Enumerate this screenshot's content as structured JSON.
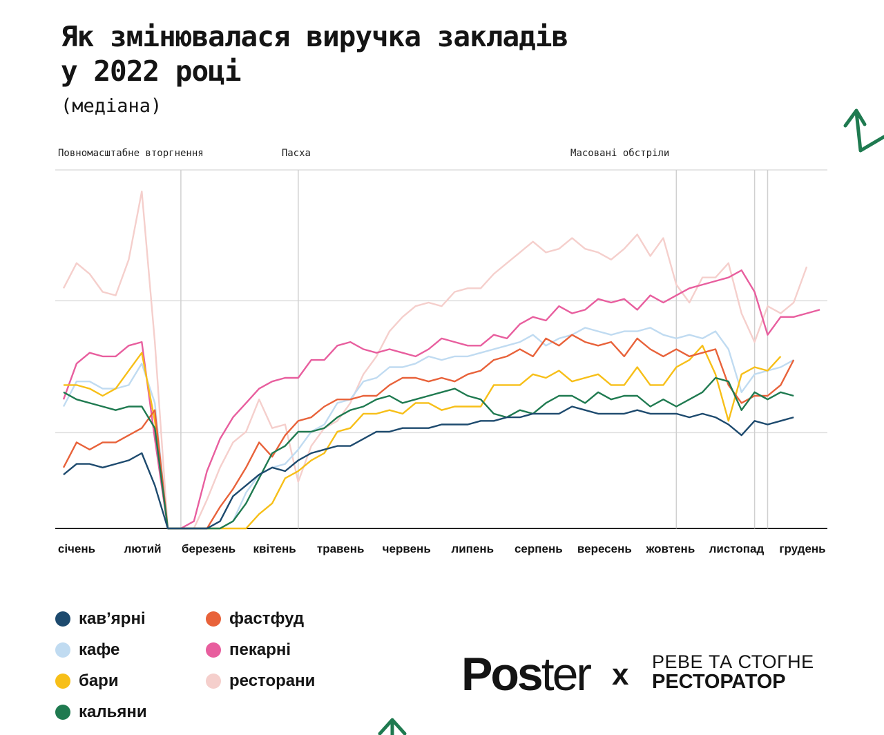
{
  "title": "Як змінювалася виручка закладів у 2022 році",
  "subtitle": "(медіана)",
  "chart_data": {
    "type": "line",
    "title": "Як змінювалася виручка закладів у 2022 році",
    "subtitle": "(медіана)",
    "xlabel": "",
    "ylabel": "",
    "ylim": [
      0,
      100
    ],
    "grid": true,
    "legend_position": "bottom-left",
    "months": [
      "січень",
      "лютий",
      "березень",
      "квітень",
      "травень",
      "червень",
      "липень",
      "серпень",
      "вересень",
      "жовтень",
      "листопад",
      "грудень"
    ],
    "events": [
      {
        "label": "Повномасштабне вторгнення",
        "week": 9
      },
      {
        "label": "Пасха",
        "week": 18
      },
      {
        "label": "Масовані обстріли",
        "week": 47
      },
      {
        "label": "",
        "week": 53
      },
      {
        "label": "",
        "week": 54
      }
    ],
    "series": [
      {
        "name": "ресторани",
        "color": "#f5cfcc",
        "values": [
          67,
          74,
          71,
          66,
          65,
          75,
          94,
          52,
          0,
          0,
          0,
          8,
          17,
          24,
          27,
          36,
          28,
          29,
          13,
          23,
          28,
          30,
          35,
          43,
          48,
          55,
          59,
          62,
          63,
          62,
          66,
          67,
          67,
          71,
          74,
          77,
          80,
          77,
          78,
          81,
          78,
          77,
          75,
          78,
          82,
          76,
          81,
          68,
          63,
          70,
          70,
          74,
          60,
          52,
          62,
          60,
          63,
          73
        ]
      },
      {
        "name": "пекарні",
        "color": "#e85e9e",
        "values": [
          36,
          46,
          49,
          48,
          48,
          51,
          52,
          25,
          0,
          0,
          2,
          16,
          25,
          31,
          35,
          39,
          41,
          42,
          42,
          47,
          47,
          51,
          52,
          50,
          49,
          50,
          49,
          48,
          50,
          53,
          52,
          51,
          51,
          54,
          53,
          57,
          59,
          58,
          62,
          60,
          61,
          64,
          63,
          64,
          61,
          65,
          63,
          65,
          67,
          68,
          69,
          70,
          72,
          66,
          54,
          59,
          59,
          60,
          61
        ]
      },
      {
        "name": "кафе",
        "color": "#c0dbf1",
        "values": [
          34,
          41,
          41,
          39,
          39,
          40,
          46,
          35,
          0,
          0,
          0,
          0,
          0,
          2,
          10,
          15,
          17,
          18,
          22,
          27,
          29,
          35,
          36,
          41,
          42,
          45,
          45,
          46,
          48,
          47,
          48,
          48,
          49,
          50,
          51,
          52,
          54,
          51,
          53,
          54,
          56,
          55,
          54,
          55,
          55,
          56,
          54,
          53,
          54,
          53,
          55,
          50,
          38,
          43,
          44,
          45,
          47
        ]
      },
      {
        "name": "бари",
        "color": "#f7bf18",
        "values": [
          40,
          40,
          39,
          37,
          39,
          44,
          49,
          30,
          0,
          0,
          0,
          0,
          0,
          0,
          0,
          4,
          7,
          14,
          16,
          19,
          21,
          27,
          28,
          32,
          32,
          33,
          32,
          35,
          35,
          33,
          34,
          34,
          34,
          40,
          40,
          40,
          43,
          42,
          44,
          41,
          42,
          43,
          40,
          40,
          45,
          40,
          40,
          45,
          47,
          51,
          43,
          30,
          43,
          45,
          44,
          48
        ]
      },
      {
        "name": "фастфуд",
        "color": "#e8623a",
        "values": [
          17,
          24,
          22,
          24,
          24,
          26,
          28,
          33,
          0,
          0,
          0,
          0,
          6,
          11,
          17,
          24,
          20,
          26,
          30,
          31,
          34,
          36,
          36,
          37,
          37,
          40,
          42,
          42,
          41,
          42,
          41,
          43,
          44,
          47,
          48,
          50,
          48,
          53,
          51,
          54,
          52,
          51,
          52,
          48,
          53,
          50,
          48,
          50,
          48,
          49,
          50,
          40,
          35,
          37,
          37,
          40,
          47
        ]
      },
      {
        "name": "кальяни",
        "color": "#1f7a50",
        "values": [
          38,
          36,
          35,
          34,
          33,
          34,
          34,
          28,
          0,
          0,
          0,
          0,
          0,
          2,
          7,
          14,
          21,
          23,
          27,
          27,
          28,
          31,
          33,
          34,
          36,
          37,
          35,
          36,
          37,
          38,
          39,
          37,
          36,
          32,
          31,
          33,
          32,
          35,
          37,
          37,
          35,
          38,
          36,
          37,
          37,
          34,
          36,
          34,
          36,
          38,
          42,
          41,
          33,
          38,
          36,
          38,
          37
        ]
      },
      {
        "name": "кав’ярні",
        "color": "#1d4a6e",
        "values": [
          15,
          18,
          18,
          17,
          18,
          19,
          21,
          12,
          0,
          0,
          0,
          0,
          2,
          9,
          12,
          15,
          17,
          16,
          19,
          21,
          22,
          23,
          23,
          25,
          27,
          27,
          28,
          28,
          28,
          29,
          29,
          29,
          30,
          30,
          31,
          31,
          32,
          32,
          32,
          34,
          33,
          32,
          32,
          32,
          33,
          32,
          32,
          32,
          31,
          32,
          31,
          29,
          26,
          30,
          29,
          30,
          31
        ]
      }
    ]
  },
  "legend": [
    {
      "name": "кав’ярні",
      "color": "#1d4a6e"
    },
    {
      "name": "кафе",
      "color": "#c0dbf1"
    },
    {
      "name": "бари",
      "color": "#f7bf18"
    },
    {
      "name": "кальяни",
      "color": "#1f7a50"
    },
    {
      "name": "фастфуд",
      "color": "#e8623a"
    },
    {
      "name": "пекарні",
      "color": "#e85e9e"
    },
    {
      "name": "ресторани",
      "color": "#f5cfcc"
    }
  ],
  "logos": {
    "poster_bold": "Pos",
    "poster_regular": "ter",
    "x": "x",
    "partner_line1": "РЕВЕ ТА СТОГНЕ",
    "partner_line2": "РЕСТОРАТОР"
  },
  "decor": {
    "arrow_icon": "green-arrow-icon",
    "accent": "#1f7a50"
  }
}
